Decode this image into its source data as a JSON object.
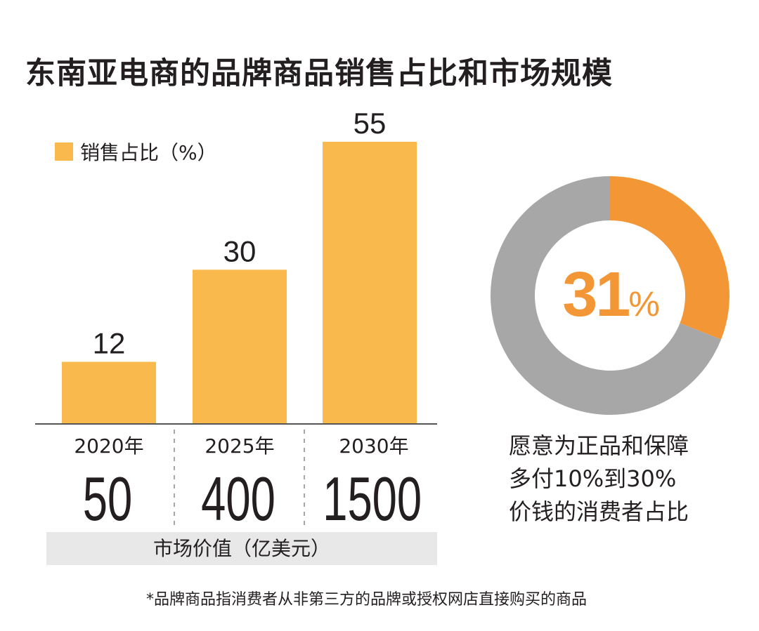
{
  "title": "东南亚电商的品牌商品销售占比和市场规模",
  "colors": {
    "bar": "#f9b94d",
    "donut_highlight": "#f39635",
    "donut_rest": "#a7a7a7",
    "band": "#e8e8e8"
  },
  "chart_data": [
    {
      "type": "bar",
      "legend": "销售占比（%）",
      "categories": [
        "2020年",
        "2025年",
        "2030年"
      ],
      "values": [
        12,
        30,
        55
      ],
      "data_labels": [
        "12",
        "30",
        "55"
      ],
      "secondary_row": {
        "label": "市场价值（亿美元）",
        "values": [
          "50",
          "400",
          "1500"
        ]
      },
      "ylim": [
        0,
        60
      ],
      "grid": false
    },
    {
      "type": "pie",
      "donut": true,
      "values": [
        31,
        69
      ],
      "center_label": "31",
      "center_unit": "%",
      "caption_lines": [
        "愿意为正品和保障",
        "多付10%到30%",
        "价钱的消费者占比"
      ]
    }
  ],
  "footnote": "*品牌商品指消费者从非第三方的品牌或授权网店直接购买的商品"
}
